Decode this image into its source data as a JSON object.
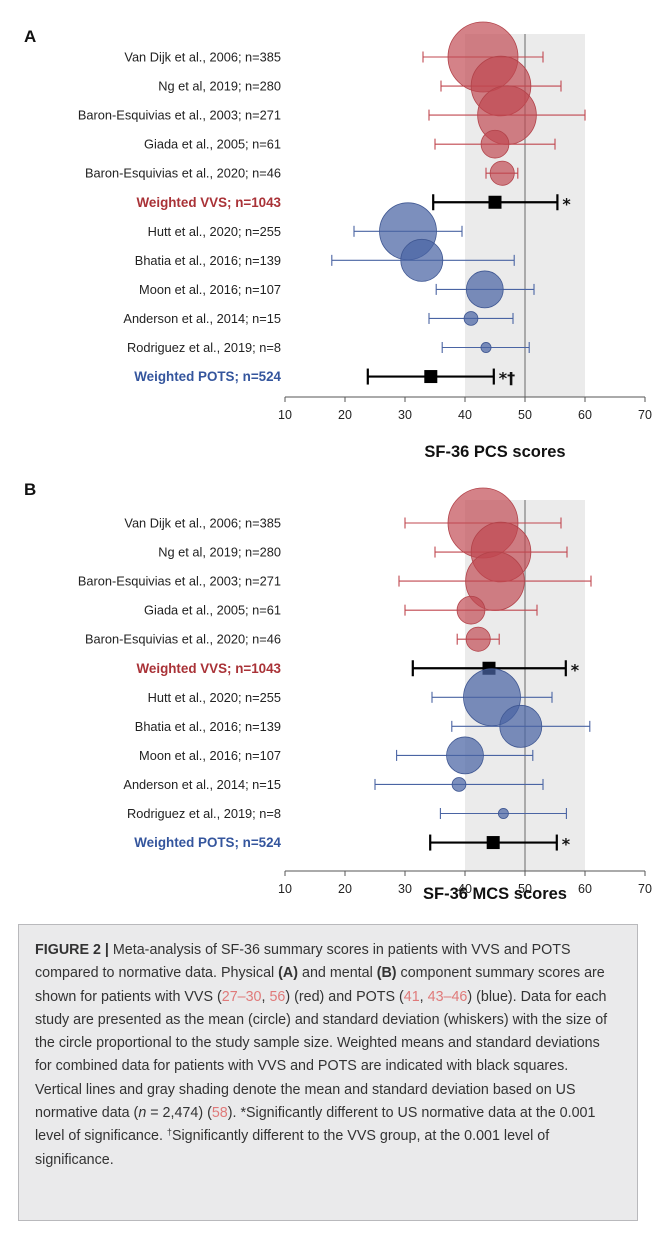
{
  "chart_data": [
    {
      "panel": "A",
      "type": "forest",
      "xlabel": "SF-36 PCS scores",
      "xlim": [
        10,
        70
      ],
      "xticks": [
        10,
        20,
        30,
        40,
        50,
        60,
        70
      ],
      "reference": {
        "mean": 50,
        "sd_band": [
          40,
          60
        ]
      },
      "rows": [
        {
          "label": "Van Dijk et al., 2006; n=385",
          "group": "VVS",
          "mean": 43,
          "lo": 33,
          "hi": 53,
          "n": 385,
          "weighted": false,
          "marks": ""
        },
        {
          "label": "Ng et al, 2019; n=280",
          "group": "VVS",
          "mean": 46,
          "lo": 36,
          "hi": 56,
          "n": 280,
          "weighted": false,
          "marks": ""
        },
        {
          "label": "Baron-Esquivias et al., 2003; n=271",
          "group": "VVS",
          "mean": 47,
          "lo": 34,
          "hi": 60,
          "n": 271,
          "weighted": false,
          "marks": ""
        },
        {
          "label": "Giada et al., 2005; n=61",
          "group": "VVS",
          "mean": 45,
          "lo": 35,
          "hi": 55,
          "n": 61,
          "weighted": false,
          "marks": ""
        },
        {
          "label": "Baron-Esquivias et al., 2020; n=46",
          "group": "VVS",
          "mean": 46.2,
          "lo": 43.5,
          "hi": 48.8,
          "n": 46,
          "weighted": false,
          "marks": ""
        },
        {
          "label": "Weighted VVS; n=1043",
          "group": "VVS",
          "mean": 45,
          "lo": 34.7,
          "hi": 55.4,
          "n": 1043,
          "weighted": true,
          "marks": "*"
        },
        {
          "label": "Hutt et al., 2020; n=255",
          "group": "POTS",
          "mean": 30.5,
          "lo": 21.5,
          "hi": 39.5,
          "n": 255,
          "weighted": false,
          "marks": ""
        },
        {
          "label": "Bhatia et al., 2016; n=139",
          "group": "POTS",
          "mean": 32.8,
          "lo": 17.8,
          "hi": 48.2,
          "n": 139,
          "weighted": false,
          "marks": ""
        },
        {
          "label": "Moon et al., 2016; n=107",
          "group": "POTS",
          "mean": 43.3,
          "lo": 35.2,
          "hi": 51.5,
          "n": 107,
          "weighted": false,
          "marks": ""
        },
        {
          "label": "Anderson et al., 2014; n=15",
          "group": "POTS",
          "mean": 41,
          "lo": 34,
          "hi": 48,
          "n": 15,
          "weighted": false,
          "marks": ""
        },
        {
          "label": "Rodriguez et al., 2019; n=8",
          "group": "POTS",
          "mean": 43.5,
          "lo": 36.2,
          "hi": 50.7,
          "n": 8,
          "weighted": false,
          "marks": ""
        },
        {
          "label": "Weighted POTS; n=524",
          "group": "POTS",
          "mean": 34.3,
          "lo": 23.8,
          "hi": 44.8,
          "n": 524,
          "weighted": true,
          "marks": "*†"
        }
      ]
    },
    {
      "panel": "B",
      "type": "forest",
      "xlabel": "SF-36 MCS scores",
      "xlim": [
        10,
        70
      ],
      "xticks": [
        10,
        20,
        30,
        40,
        50,
        60,
        70
      ],
      "reference": {
        "mean": 50,
        "sd_band": [
          40,
          60
        ]
      },
      "rows": [
        {
          "label": "Van Dijk et al., 2006; n=385",
          "group": "VVS",
          "mean": 43,
          "lo": 30,
          "hi": 56,
          "n": 385,
          "weighted": false,
          "marks": ""
        },
        {
          "label": "Ng et al, 2019; n=280",
          "group": "VVS",
          "mean": 46,
          "lo": 35,
          "hi": 57,
          "n": 280,
          "weighted": false,
          "marks": ""
        },
        {
          "label": "Baron-Esquivias et al., 2003; n=271",
          "group": "VVS",
          "mean": 45,
          "lo": 29,
          "hi": 61,
          "n": 271,
          "weighted": false,
          "marks": ""
        },
        {
          "label": "Giada et al., 2005; n=61",
          "group": "VVS",
          "mean": 41,
          "lo": 30,
          "hi": 52,
          "n": 61,
          "weighted": false,
          "marks": ""
        },
        {
          "label": "Baron-Esquivias et al., 2020; n=46",
          "group": "VVS",
          "mean": 42.2,
          "lo": 38.7,
          "hi": 45.7,
          "n": 46,
          "weighted": false,
          "marks": ""
        },
        {
          "label": "Weighted VVS; n=1043",
          "group": "VVS",
          "mean": 44,
          "lo": 31.3,
          "hi": 56.8,
          "n": 1043,
          "weighted": true,
          "marks": "*"
        },
        {
          "label": "Hutt et al., 2020; n=255",
          "group": "POTS",
          "mean": 44.5,
          "lo": 34.5,
          "hi": 54.5,
          "n": 255,
          "weighted": false,
          "marks": ""
        },
        {
          "label": "Bhatia et al., 2016; n=139",
          "group": "POTS",
          "mean": 49.3,
          "lo": 37.8,
          "hi": 60.8,
          "n": 139,
          "weighted": false,
          "marks": ""
        },
        {
          "label": "Moon et al., 2016; n=107",
          "group": "POTS",
          "mean": 40,
          "lo": 28.6,
          "hi": 51.3,
          "n": 107,
          "weighted": false,
          "marks": ""
        },
        {
          "label": "Anderson et al., 2014; n=15",
          "group": "POTS",
          "mean": 39,
          "lo": 25,
          "hi": 53,
          "n": 15,
          "weighted": false,
          "marks": ""
        },
        {
          "label": "Rodriguez et al., 2019; n=8",
          "group": "POTS",
          "mean": 46.4,
          "lo": 35.9,
          "hi": 56.9,
          "n": 8,
          "weighted": false,
          "marks": ""
        },
        {
          "label": "Weighted POTS; n=524",
          "group": "POTS",
          "mean": 44.7,
          "lo": 34.2,
          "hi": 55.3,
          "n": 524,
          "weighted": true,
          "marks": "*"
        }
      ]
    }
  ],
  "colors": {
    "vvs": "#c0474f",
    "vvs_label": "#a93237",
    "pots": "#4a64a3",
    "pots_label": "#34559d",
    "weighted": "#000000",
    "reference_band": "#ebebeb",
    "reference_line": "#888888",
    "caption_background": "#eaeaeb",
    "caption_reference": "#e07a7a"
  },
  "caption": {
    "figure_label": "FIGURE 2 |",
    "t1": " Meta-analysis of SF-36 summary scores in patients with VVS and POTS compared to normative data. Physical ",
    "a_label": "(A)",
    "t2": " and mental ",
    "b_label": "(B)",
    "t3": " component summary scores are shown for patients with VVS (",
    "ref1": "27–30",
    "t4": ", ",
    "ref2": "56",
    "t5": ") (red) and POTS (",
    "ref3": "41",
    "t6": ", ",
    "ref4": "43–46",
    "t7": ") (blue). Data for each study are presented as the mean (circle) and standard deviation (whiskers) with the size of the circle proportional to the study sample size. Weighted means and standard deviations for combined data for patients with VVS and POTS are indicated with black squares. Vertical lines and gray shading denote the mean and standard deviation based on US normative data (",
    "n_symbol": "n",
    "t8": " = 2,474) (",
    "ref5": "58",
    "t9": "). *Significantly different to US normative data at the 0.001 level of significance. ",
    "dagger": "†",
    "t10": "Significantly different to the VVS group, at the 0.001 level of significance."
  }
}
